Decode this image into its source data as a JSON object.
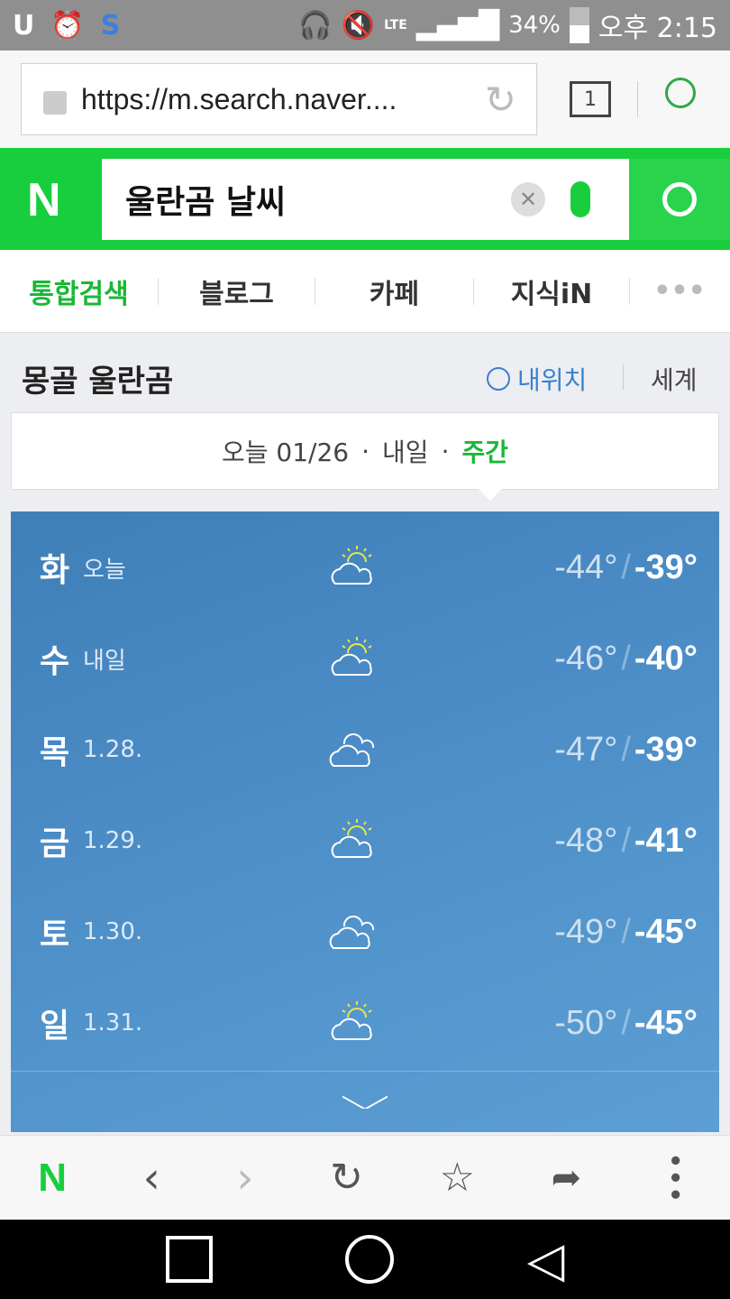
{
  "status": {
    "battery": "34%",
    "time": "오후 2:15",
    "network": "LTE"
  },
  "browser": {
    "url": "https://m.search.naver....",
    "tab_count": "1"
  },
  "search": {
    "logo": "N",
    "query": "울란곰 날씨"
  },
  "tabs": [
    "통합검색",
    "블로그",
    "카페",
    "지식iN",
    "•••"
  ],
  "location": {
    "name": "몽골 울란곰",
    "my_location": "내위치",
    "world": "세계"
  },
  "datebar": {
    "today": "오늘 01/26",
    "dot": "·",
    "tomorrow": "내일",
    "weekly": "주간"
  },
  "forecast": [
    {
      "day": "화",
      "sub": "오늘",
      "icon": "partly-cloudy",
      "low": "-44°",
      "high": "-39°"
    },
    {
      "day": "수",
      "sub": "내일",
      "icon": "partly-cloudy",
      "low": "-46°",
      "high": "-40°"
    },
    {
      "day": "목",
      "sub": "1.28.",
      "icon": "cloudy",
      "low": "-47°",
      "high": "-39°"
    },
    {
      "day": "금",
      "sub": "1.29.",
      "icon": "partly-cloudy",
      "low": "-48°",
      "high": "-41°"
    },
    {
      "day": "토",
      "sub": "1.30.",
      "icon": "cloudy",
      "low": "-49°",
      "high": "-45°"
    },
    {
      "day": "일",
      "sub": "1.31.",
      "icon": "partly-cloudy",
      "low": "-50°",
      "high": "-45°"
    }
  ],
  "bottom": {
    "logo": "N"
  },
  "colors": {
    "naver_green": "#19ce3c",
    "link_blue": "#3a7fd0"
  }
}
